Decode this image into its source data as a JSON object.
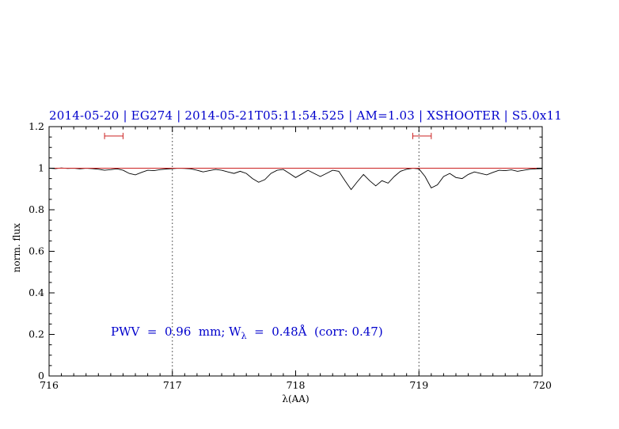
{
  "annotation": {
    "prefix": "PWV  =  0.96  mm; W",
    "sub": "λ",
    "suffix": "  =  0.48Å  (corr: 0.47)"
  },
  "colors": {
    "title_text": "#0000cc",
    "annotation_text": "#0000cc",
    "spectrum_line": "#000000",
    "continuum_line": "#cc2222",
    "marker": "#cc2222",
    "axis": "#000000",
    "dotted_line": "#333333"
  },
  "chart_data": {
    "type": "line",
    "title": "2014-05-20 | EG274 | 2014-05-21T05:11:54.525 | AM=1.03 | XSHOOTER | S5.0x11",
    "xlabel": "λ(AA)",
    "ylabel": "norm. flux",
    "xlim": [
      716,
      720
    ],
    "ylim": [
      0,
      1.2
    ],
    "grid": false,
    "legend": "none",
    "x_major_ticks": [
      716,
      717,
      718,
      719,
      720
    ],
    "x_tick_labels": [
      "716",
      "717",
      "718",
      "719",
      "720"
    ],
    "x_minor_step": 0.1,
    "y_major_ticks": [
      0,
      0.2,
      0.4,
      0.6,
      0.8,
      1,
      1.2
    ],
    "y_tick_labels": [
      "0",
      "0.2",
      "0.4",
      "0.6",
      "0.8",
      "1",
      "1.2"
    ],
    "y_minor_step": 0.05,
    "vlines": [
      {
        "x": 717,
        "style": "dotted"
      },
      {
        "x": 719,
        "style": "dotted"
      }
    ],
    "continuum": {
      "y": 1.0,
      "color": "#cc2222"
    },
    "range_markers": [
      {
        "x1": 716.45,
        "x2": 716.6,
        "y": 1.155,
        "color": "#cc2222"
      },
      {
        "x1": 718.95,
        "x2": 719.1,
        "y": 1.155,
        "color": "#cc2222"
      }
    ],
    "series": [
      {
        "name": "spectrum",
        "color": "#000000",
        "x_start": 716.0,
        "x_step": 0.05,
        "y": [
          1.0,
          0.998,
          1.001,
          0.999,
          1.0,
          0.997,
          1.0,
          0.998,
          0.995,
          0.99,
          0.993,
          0.997,
          0.99,
          0.975,
          0.968,
          0.98,
          0.99,
          0.988,
          0.993,
          0.996,
          0.998,
          1.0,
          0.999,
          0.997,
          0.99,
          0.982,
          0.988,
          0.994,
          0.99,
          0.982,
          0.975,
          0.985,
          0.975,
          0.95,
          0.932,
          0.945,
          0.975,
          0.99,
          0.994,
          0.975,
          0.955,
          0.972,
          0.99,
          0.975,
          0.96,
          0.975,
          0.99,
          0.985,
          0.94,
          0.897,
          0.935,
          0.97,
          0.94,
          0.915,
          0.94,
          0.928,
          0.96,
          0.985,
          0.995,
          1.0,
          0.997,
          0.96,
          0.905,
          0.92,
          0.96,
          0.975,
          0.955,
          0.95,
          0.97,
          0.982,
          0.975,
          0.968,
          0.98,
          0.99,
          0.988,
          0.992,
          0.985,
          0.99,
          0.995,
          0.997,
          0.998
        ]
      }
    ]
  }
}
